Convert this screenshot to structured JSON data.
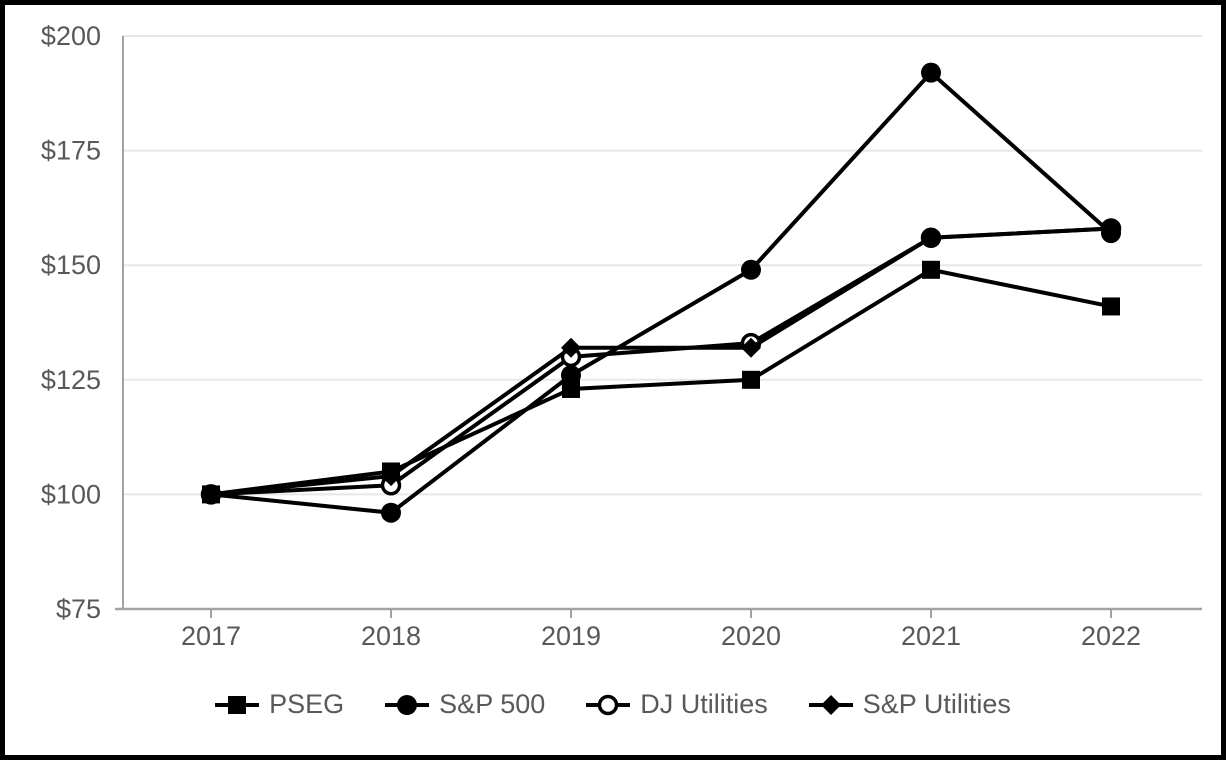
{
  "chart_data": {
    "type": "line",
    "title": "",
    "xlabel": "",
    "ylabel": "",
    "categories": [
      "2017",
      "2018",
      "2019",
      "2020",
      "2021",
      "2022"
    ],
    "y_ticks": [
      "$75",
      "$100",
      "$125",
      "$150",
      "$175",
      "$200"
    ],
    "ylim": [
      75,
      200
    ],
    "y_step": 25,
    "grid": "horizontal",
    "legend_position": "bottom",
    "series": [
      {
        "name": "PSEG",
        "marker": "square",
        "fill": "filled",
        "color": "#000000",
        "values": [
          100,
          105,
          123,
          125,
          149,
          141
        ]
      },
      {
        "name": "S&P 500",
        "marker": "circle",
        "fill": "filled",
        "color": "#000000",
        "values": [
          100,
          96,
          126,
          149,
          192,
          157
        ]
      },
      {
        "name": "DJ Utilities",
        "marker": "circle",
        "fill": "open",
        "color": "#000000",
        "values": [
          100,
          102,
          130,
          133,
          156,
          158
        ]
      },
      {
        "name": "S&P Utilities",
        "marker": "diamond",
        "fill": "filled",
        "color": "#000000",
        "values": [
          100,
          104,
          132,
          132,
          156,
          158
        ]
      }
    ],
    "colors": {
      "axis_text": "#595959",
      "gridline": "#e7e7e7",
      "axis_line": "#a3a3a3",
      "series_line": "#000000",
      "figure_border": "#000000",
      "background": "#ffffff"
    }
  }
}
